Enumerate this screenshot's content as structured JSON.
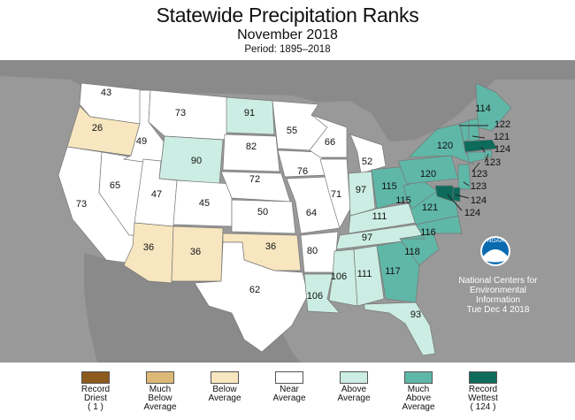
{
  "title": "Statewide Precipitation Ranks",
  "subtitle": "November 2018",
  "period": "Period: 1895–2018",
  "agency": {
    "logo_text": "NOAA",
    "lines": [
      "National Centers for",
      "Environmental",
      "Information",
      "Tue Dec  4 2018"
    ]
  },
  "colors": {
    "record_driest": "#8c5a1c",
    "much_below": "#dcb976",
    "below": "#f7e6bf",
    "near": "#ffffff",
    "above": "#ccede3",
    "much_above": "#5fb7a7",
    "record_wettest": "#0d6b5c",
    "background": "#999999"
  },
  "legend": [
    {
      "label": "Record\nDriest",
      "rank": "( 1 )",
      "color": "#8c5a1c"
    },
    {
      "label": "Much\nBelow\nAverage",
      "rank": "",
      "color": "#dcb976"
    },
    {
      "label": "Below\nAverage",
      "rank": "",
      "color": "#f7e6bf"
    },
    {
      "label": "Near\nAverage",
      "rank": "",
      "color": "#ffffff"
    },
    {
      "label": "Above\nAverage",
      "rank": "",
      "color": "#ccede3"
    },
    {
      "label": "Much\nAbove\nAverage",
      "rank": "",
      "color": "#5fb7a7"
    },
    {
      "label": "Record\nWettest",
      "rank": "( 124 )",
      "color": "#0d6b5c"
    }
  ],
  "states": [
    {
      "abbr": "WA",
      "rank": "43",
      "category": "near"
    },
    {
      "abbr": "OR",
      "rank": "26",
      "category": "below"
    },
    {
      "abbr": "CA",
      "rank": "73",
      "category": "near"
    },
    {
      "abbr": "NV",
      "rank": "65",
      "category": "near"
    },
    {
      "abbr": "ID",
      "rank": "49",
      "category": "near"
    },
    {
      "abbr": "MT",
      "rank": "73",
      "category": "near"
    },
    {
      "abbr": "WY",
      "rank": "90",
      "category": "above"
    },
    {
      "abbr": "UT",
      "rank": "47",
      "category": "near"
    },
    {
      "abbr": "AZ",
      "rank": "36",
      "category": "below"
    },
    {
      "abbr": "CO",
      "rank": "45",
      "category": "near"
    },
    {
      "abbr": "NM",
      "rank": "36",
      "category": "below"
    },
    {
      "abbr": "ND",
      "rank": "91",
      "category": "above"
    },
    {
      "abbr": "SD",
      "rank": "82",
      "category": "near"
    },
    {
      "abbr": "NE",
      "rank": "72",
      "category": "near"
    },
    {
      "abbr": "KS",
      "rank": "50",
      "category": "near"
    },
    {
      "abbr": "OK",
      "rank": "36",
      "category": "below"
    },
    {
      "abbr": "TX",
      "rank": "62",
      "category": "near"
    },
    {
      "abbr": "MN",
      "rank": "55",
      "category": "near"
    },
    {
      "abbr": "IA",
      "rank": "76",
      "category": "near"
    },
    {
      "abbr": "MO",
      "rank": "64",
      "category": "near"
    },
    {
      "abbr": "AR",
      "rank": "80",
      "category": "near"
    },
    {
      "abbr": "LA",
      "rank": "106",
      "category": "above"
    },
    {
      "abbr": "WI",
      "rank": "66",
      "category": "near"
    },
    {
      "abbr": "IL",
      "rank": "71",
      "category": "near"
    },
    {
      "abbr": "MI",
      "rank": "52",
      "category": "near"
    },
    {
      "abbr": "IN",
      "rank": "97",
      "category": "above"
    },
    {
      "abbr": "OH",
      "rank": "115",
      "category": "much_above"
    },
    {
      "abbr": "KY",
      "rank": "111",
      "category": "above"
    },
    {
      "abbr": "TN",
      "rank": "97",
      "category": "above"
    },
    {
      "abbr": "MS",
      "rank": "106",
      "category": "above"
    },
    {
      "abbr": "AL",
      "rank": "111",
      "category": "above"
    },
    {
      "abbr": "GA",
      "rank": "117",
      "category": "much_above"
    },
    {
      "abbr": "FL",
      "rank": "93",
      "category": "above"
    },
    {
      "abbr": "SC",
      "rank": "118",
      "category": "much_above"
    },
    {
      "abbr": "NC",
      "rank": "116",
      "category": "much_above"
    },
    {
      "abbr": "VA",
      "rank": "121",
      "category": "much_above"
    },
    {
      "abbr": "WV",
      "rank": "115",
      "category": "much_above"
    },
    {
      "abbr": "PA",
      "rank": "120",
      "category": "much_above"
    },
    {
      "abbr": "NY",
      "rank": "120",
      "category": "much_above"
    },
    {
      "abbr": "ME",
      "rank": "114",
      "category": "much_above"
    },
    {
      "abbr": "VT",
      "rank": "122",
      "category": "much_above"
    },
    {
      "abbr": "NH",
      "rank": "121",
      "category": "much_above"
    },
    {
      "abbr": "MA",
      "rank": "124",
      "category": "record_wettest"
    },
    {
      "abbr": "RI",
      "rank": "123",
      "category": "much_above"
    },
    {
      "abbr": "CT",
      "rank": "123",
      "category": "much_above"
    },
    {
      "abbr": "NJ",
      "rank": "123",
      "category": "much_above"
    },
    {
      "abbr": "DE",
      "rank": "124",
      "category": "record_wettest"
    },
    {
      "abbr": "MD",
      "rank": "124",
      "category": "record_wettest"
    }
  ]
}
